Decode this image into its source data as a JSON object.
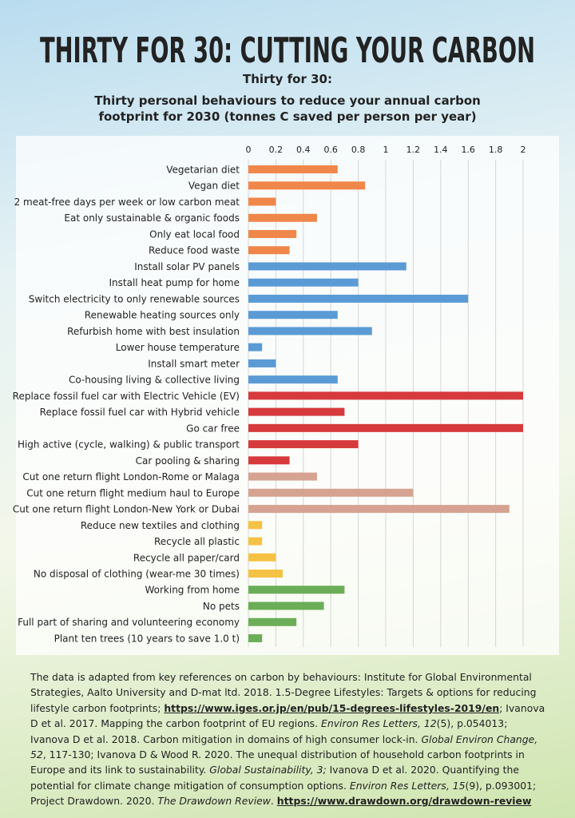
{
  "chart_data": {
    "type": "bar",
    "orientation": "horizontal",
    "title": "THIRTY FOR 30: CUTTING YOUR CARBON",
    "subtitle": "Thirty for 30:",
    "description": "Thirty personal behaviours to reduce your annual carbon footprint for 2030 (tonnes C saved per person per year)",
    "categories": [
      "Vegetarian diet",
      "Vegan diet",
      "2 meat-free days per week or low carbon meat",
      "Eat only sustainable & organic foods",
      "Only eat local food",
      "Reduce food waste",
      "Install solar PV panels",
      "Install heat pump for home",
      "Switch electricity to only renewable sources",
      "Renewable heating sources only",
      "Refurbish home with best insulation",
      "Lower house temperature",
      "Install smart meter",
      "Co-housing living & collective living",
      "Replace fossil fuel car with Electric Vehicle (EV)",
      "Replace fossil fuel car with Hybrid vehicle",
      "Go car free",
      "High active (cycle, walking) & public transport",
      "Car pooling & sharing",
      "Cut one return flight London-Rome or Malaga",
      "Cut one return flight medium haul to Europe",
      "Cut one return flight London-New York or Dubai",
      "Reduce new textiles and clothing",
      "Recycle all plastic",
      "Recycle all paper/card",
      "No disposal of clothing (wear-me 30 times)",
      "Working from home",
      "No pets",
      "Full part of sharing and volunteering economy",
      "Plant ten trees (10 years to save 1.0 t)"
    ],
    "values": [
      0.65,
      0.85,
      0.2,
      0.5,
      0.35,
      0.3,
      1.15,
      0.8,
      1.6,
      0.65,
      0.9,
      0.1,
      0.2,
      0.65,
      2.0,
      0.7,
      2.0,
      0.8,
      0.3,
      0.5,
      1.2,
      1.9,
      0.1,
      0.1,
      0.2,
      0.25,
      0.7,
      0.55,
      0.35,
      0.1
    ],
    "colors": [
      "#f0874a",
      "#f0874a",
      "#f0874a",
      "#f0874a",
      "#f0874a",
      "#f0874a",
      "#5b9bd5",
      "#5b9bd5",
      "#5b9bd5",
      "#5b9bd5",
      "#5b9bd5",
      "#5b9bd5",
      "#5b9bd5",
      "#5b9bd5",
      "#d63a3c",
      "#d63a3c",
      "#d63a3c",
      "#d63a3c",
      "#d63a3c",
      "#d6a392",
      "#d6a392",
      "#d6a392",
      "#f6c244",
      "#f6c244",
      "#f6c244",
      "#f6c244",
      "#6cae57",
      "#6cae57",
      "#6cae57",
      "#6cae57"
    ],
    "xlim": [
      0,
      2
    ],
    "xticks": [
      0,
      0.2,
      0.4,
      0.6,
      0.8,
      1,
      1.2,
      1.4,
      1.6,
      1.8,
      2
    ],
    "grid": true,
    "title_color": "#3a8a50",
    "notes": [
      {
        "text": "The data is adapted from key references on carbon by behaviours: Institute for Global Environmental Strategies, Aalto University and D-mat ltd. 2018. 1.5-Degree Lifestyles: Targets & options for reducing lifestyle carbon footprints; ",
        "style": "normal"
      },
      {
        "text": "https://www.iges.or.jp/en/pub/15-degrees-lifestyles-2019/en",
        "style": "bold"
      },
      {
        "text": "; Ivanova D et al. 2017. Mapping the carbon footprint of EU regions. ",
        "style": "normal"
      },
      {
        "text": "Environ Res Letters, 12",
        "style": "italic"
      },
      {
        "text": "(5), p.054013; Ivanova D et al. 2018. Carbon mitigation in domains of high consumer lock-in. ",
        "style": "normal"
      },
      {
        "text": "Global Environ Change, 52",
        "style": "italic"
      },
      {
        "text": ", 117-130; Ivanova D & Wood R. 2020. The unequal distribution of household carbon footprints in Europe and its link to sustainability. ",
        "style": "normal"
      },
      {
        "text": "Global Sustainability, 3;",
        "style": "italic"
      },
      {
        "text": " Ivanova D et al. 2020. Quantifying the potential for climate change mitigation of consumption options. ",
        "style": "normal"
      },
      {
        "text": "Environ Res Letters, 15",
        "style": "italic"
      },
      {
        "text": "(9), p.093001; Project Drawdown. 2020. ",
        "style": "normal"
      },
      {
        "text": "The Drawdown Review",
        "style": "italic"
      },
      {
        "text": ". ",
        "style": "normal"
      },
      {
        "text": "https://www.drawdown.org/drawdown-review",
        "style": "bold"
      }
    ]
  }
}
